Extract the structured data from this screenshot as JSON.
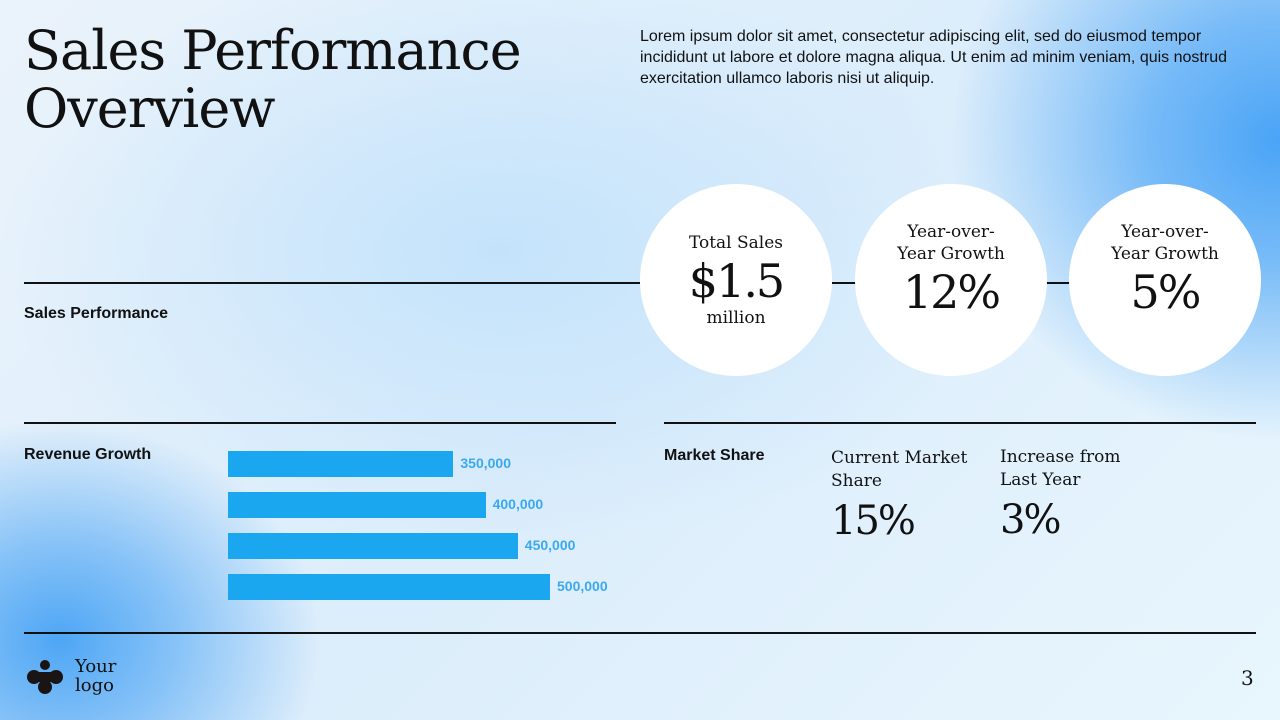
{
  "title": "Sales Performance Overview",
  "intro": "Lorem ipsum dolor sit amet, consectetur adipiscing elit, sed do eiusmod tempor incididunt ut labore et dolore magna aliqua. Ut enim ad minim veniam, quis nostrud exercitation ullamco laboris nisi ut aliquip.",
  "sections": {
    "sales_performance": "Sales Performance",
    "revenue_growth": "Revenue Growth",
    "market_share": "Market Share"
  },
  "kpis": [
    {
      "title": "Total Sales",
      "value": "$1.5",
      "unit": "million"
    },
    {
      "title": "Year-over-Year Growth",
      "value": "12%"
    },
    {
      "title": "Year-over-Year Growth",
      "value": "5%"
    }
  ],
  "market_share": [
    {
      "title": "Current Market Share",
      "value": "15%"
    },
    {
      "title": "Increase from Last Year",
      "value": "3%"
    }
  ],
  "chart_data": {
    "type": "bar",
    "orientation": "horizontal",
    "title": "Revenue Growth",
    "values": [
      350000,
      400000,
      450000,
      500000
    ],
    "labels": [
      "350,000",
      "400,000",
      "450,000",
      "500,000"
    ],
    "color": "#1aa7f0",
    "label_color": "#3ba8ef",
    "grid": false,
    "xlim": [
      0,
      500000
    ]
  },
  "logo": {
    "text": "Your logo"
  },
  "page_number": "3"
}
